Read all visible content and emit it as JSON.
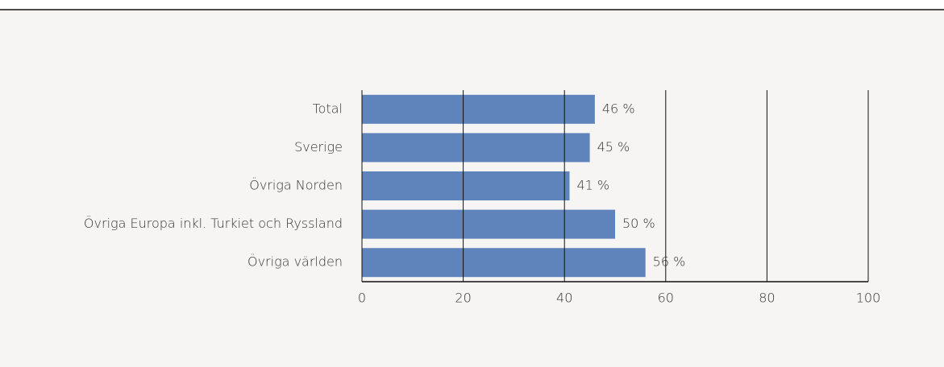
{
  "chart_data": {
    "type": "bar",
    "orientation": "horizontal",
    "categories": [
      "Total",
      "Sverige",
      "Övriga Norden",
      "Övriga Europa inkl. Turkiet och Ryssland",
      "Övriga världen"
    ],
    "values": [
      46,
      45,
      41,
      50,
      56
    ],
    "value_labels": [
      "46 %",
      "45 %",
      "41 %",
      "50 %",
      "56 %"
    ],
    "color": "#5f83bb",
    "xlim": [
      0,
      100
    ],
    "xticks": [
      0,
      20,
      40,
      60,
      80,
      100
    ],
    "grid": true
  }
}
